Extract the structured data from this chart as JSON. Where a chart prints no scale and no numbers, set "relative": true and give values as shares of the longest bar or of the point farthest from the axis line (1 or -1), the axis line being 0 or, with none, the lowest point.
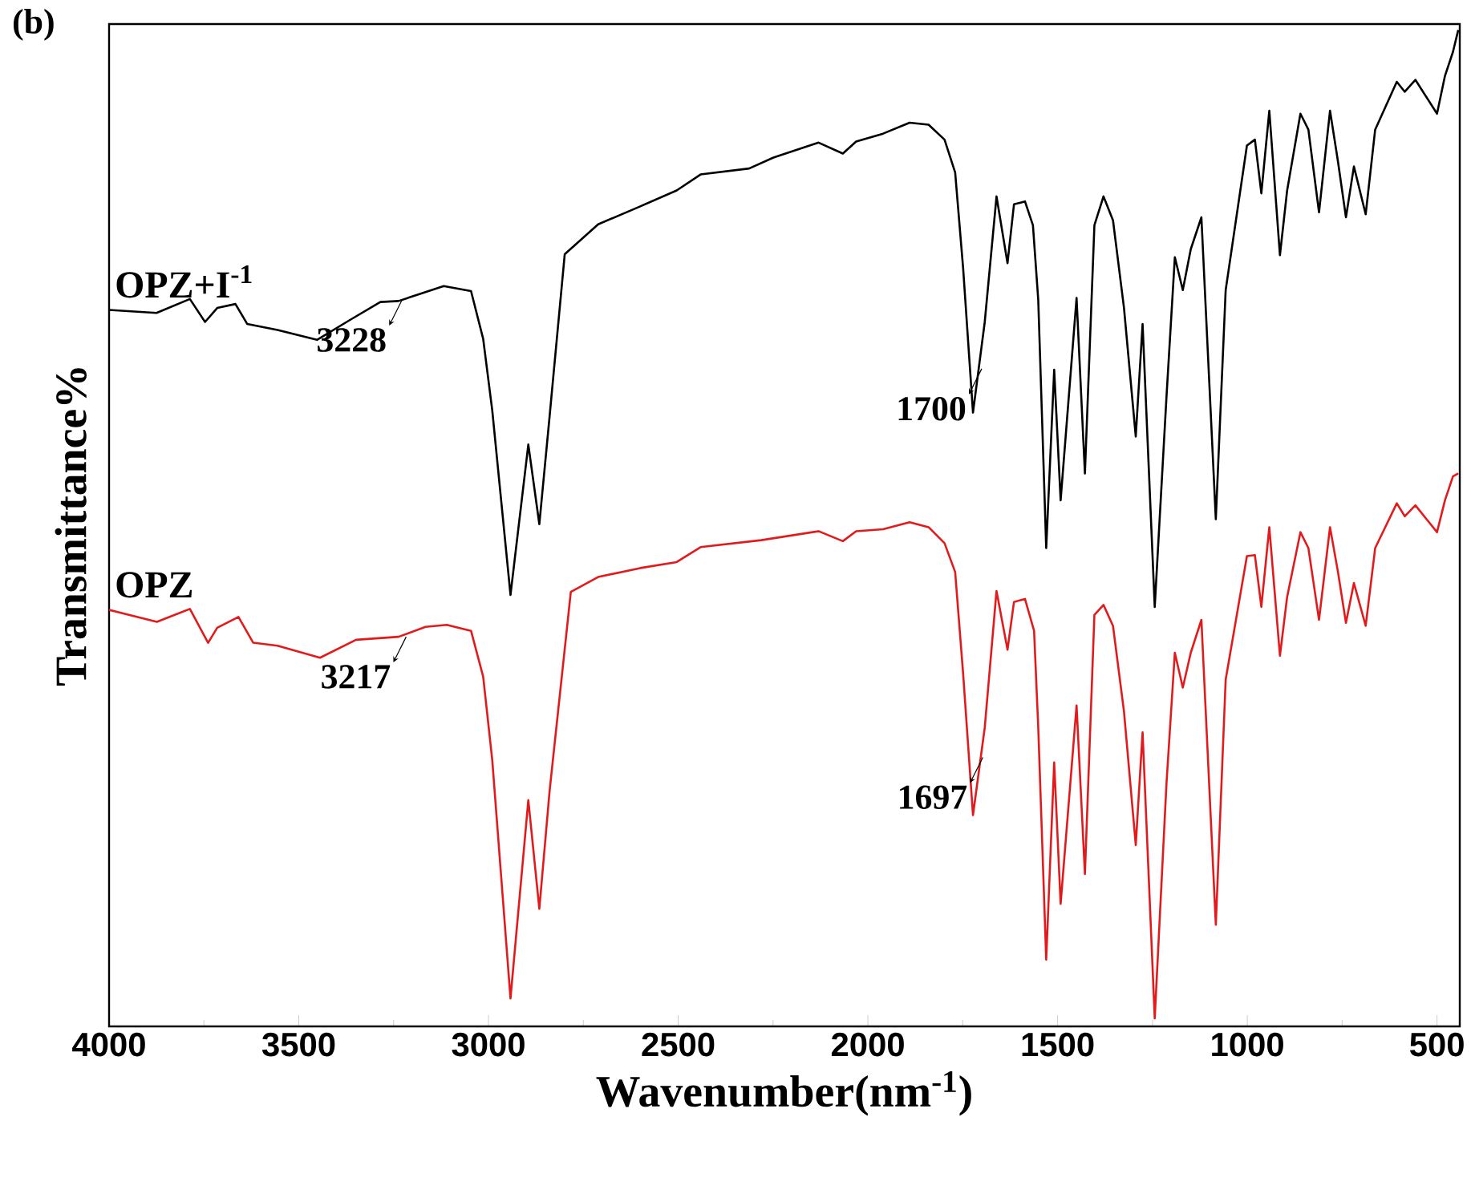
{
  "chart_data": {
    "type": "line",
    "title": "(b)",
    "xlabel": "Wavenumber(nm$^{-1}$)",
    "ylabel": "Transmittance%",
    "relative": true,
    "xlim": [
      4000,
      440
    ],
    "xticks": [
      4000,
      3500,
      3000,
      2500,
      2000,
      1500,
      1000,
      500
    ],
    "grid": false,
    "legend": false,
    "marker": "none",
    "line_style": "solid",
    "series": [
      {
        "name": "OPZ+I$^{-1}$",
        "color": "#000000",
        "x": [
          4000,
          3875,
          3787,
          3747,
          3715,
          3667,
          3636,
          3556,
          3452,
          3365,
          3285,
          3237,
          3174,
          3118,
          3046,
          3014,
          2990,
          2942,
          2895,
          2866,
          2839,
          2799,
          2711,
          2600,
          2504,
          2441,
          2313,
          2249,
          2130,
          2066,
          2031,
          1960,
          1890,
          1840,
          1798,
          1770,
          1749,
          1723,
          1692,
          1661,
          1632,
          1615,
          1586,
          1565,
          1551,
          1530,
          1509,
          1492,
          1450,
          1428,
          1403,
          1379,
          1354,
          1325,
          1294,
          1276,
          1244,
          1213,
          1191,
          1170,
          1149,
          1121,
          1083,
          1057,
          1001,
          980,
          963,
          942,
          914,
          895,
          860,
          839,
          811,
          782,
          761,
          740,
          719,
          688,
          663,
          606,
          585,
          557,
          500,
          479,
          458,
          444
        ],
        "values": [
          0.719,
          0.716,
          0.73,
          0.707,
          0.721,
          0.725,
          0.705,
          0.699,
          0.689,
          0.709,
          0.727,
          0.728,
          0.736,
          0.743,
          0.738,
          0.69,
          0.618,
          0.433,
          0.584,
          0.504,
          0.612,
          0.775,
          0.805,
          0.823,
          0.839,
          0.855,
          0.861,
          0.872,
          0.887,
          0.876,
          0.888,
          0.896,
          0.907,
          0.905,
          0.89,
          0.857,
          0.761,
          0.616,
          0.707,
          0.833,
          0.766,
          0.825,
          0.828,
          0.804,
          0.729,
          0.48,
          0.659,
          0.528,
          0.731,
          0.555,
          0.804,
          0.833,
          0.809,
          0.721,
          0.592,
          0.705,
          0.421,
          0.632,
          0.772,
          0.739,
          0.78,
          0.812,
          0.509,
          0.739,
          0.884,
          0.89,
          0.836,
          0.919,
          0.774,
          0.839,
          0.916,
          0.9,
          0.817,
          0.919,
          0.868,
          0.812,
          0.863,
          0.815,
          0.9,
          0.948,
          0.938,
          0.95,
          0.916,
          0.954,
          0.978,
          1.0
        ]
      },
      {
        "name": "OPZ",
        "color": "#e31a1c",
        "x": [
          4000,
          3874,
          3787,
          3739,
          3715,
          3659,
          3620,
          3556,
          3444,
          3349,
          3237,
          3166,
          3110,
          3046,
          3014,
          2990,
          2942,
          2895,
          2866,
          2839,
          2783,
          2711,
          2600,
          2504,
          2441,
          2281,
          2130,
          2066,
          2031,
          1960,
          1890,
          1840,
          1798,
          1770,
          1749,
          1723,
          1692,
          1661,
          1632,
          1615,
          1586,
          1562,
          1551,
          1530,
          1509,
          1492,
          1450,
          1428,
          1403,
          1379,
          1354,
          1325,
          1294,
          1276,
          1244,
          1213,
          1191,
          1170,
          1149,
          1121,
          1083,
          1057,
          1001,
          980,
          963,
          942,
          914,
          895,
          860,
          839,
          811,
          782,
          761,
          740,
          719,
          688,
          663,
          606,
          585,
          557,
          500,
          479,
          458,
          444
        ],
        "values": [
          0.418,
          0.406,
          0.419,
          0.385,
          0.4,
          0.411,
          0.385,
          0.382,
          0.37,
          0.388,
          0.391,
          0.401,
          0.403,
          0.397,
          0.351,
          0.267,
          0.028,
          0.227,
          0.118,
          0.236,
          0.436,
          0.451,
          0.46,
          0.466,
          0.481,
          0.488,
          0.497,
          0.487,
          0.497,
          0.499,
          0.506,
          0.501,
          0.485,
          0.456,
          0.354,
          0.212,
          0.3,
          0.437,
          0.378,
          0.426,
          0.429,
          0.397,
          0.3,
          0.067,
          0.265,
          0.123,
          0.322,
          0.153,
          0.413,
          0.423,
          0.402,
          0.316,
          0.182,
          0.295,
          0.008,
          0.244,
          0.375,
          0.34,
          0.375,
          0.408,
          0.102,
          0.348,
          0.472,
          0.473,
          0.421,
          0.501,
          0.372,
          0.431,
          0.496,
          0.48,
          0.408,
          0.501,
          0.456,
          0.405,
          0.445,
          0.402,
          0.48,
          0.525,
          0.512,
          0.523,
          0.496,
          0.528,
          0.552,
          0.555
        ]
      }
    ],
    "annotations": [
      {
        "text": "3228",
        "x": 3228,
        "y": 0.729
      },
      {
        "text": "1700",
        "x": 1700,
        "y": 0.66
      },
      {
        "text": "3217",
        "x": 3217,
        "y": 0.391
      },
      {
        "text": "1697",
        "x": 1697,
        "y": 0.27
      }
    ]
  }
}
